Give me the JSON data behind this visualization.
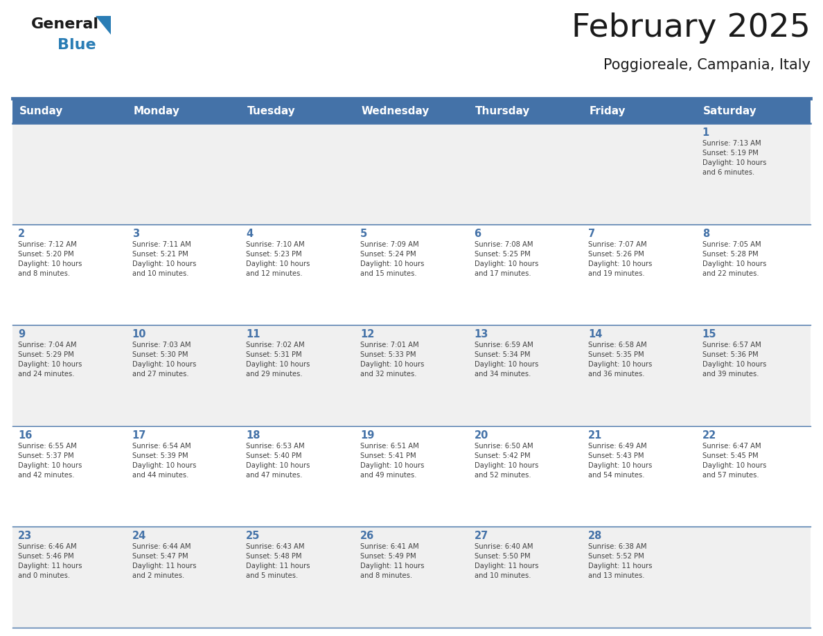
{
  "title": "February 2025",
  "subtitle": "Poggioreale, Campania, Italy",
  "days_of_week": [
    "Sunday",
    "Monday",
    "Tuesday",
    "Wednesday",
    "Thursday",
    "Friday",
    "Saturday"
  ],
  "header_bg": "#4472A8",
  "header_fg": "#FFFFFF",
  "row_bg_odd": "#F0F0F0",
  "row_bg_even": "#FFFFFF",
  "separator_color": "#4472A8",
  "day_color": "#4472A8",
  "text_color": "#404040",
  "title_color": "#1A1A1A",
  "logo_general_color": "#1A1A1A",
  "logo_blue_color": "#2A7DB5",
  "calendar": [
    [
      {
        "day": null,
        "info": null
      },
      {
        "day": null,
        "info": null
      },
      {
        "day": null,
        "info": null
      },
      {
        "day": null,
        "info": null
      },
      {
        "day": null,
        "info": null
      },
      {
        "day": null,
        "info": null
      },
      {
        "day": 1,
        "info": "Sunrise: 7:13 AM\nSunset: 5:19 PM\nDaylight: 10 hours\nand 6 minutes."
      }
    ],
    [
      {
        "day": 2,
        "info": "Sunrise: 7:12 AM\nSunset: 5:20 PM\nDaylight: 10 hours\nand 8 minutes."
      },
      {
        "day": 3,
        "info": "Sunrise: 7:11 AM\nSunset: 5:21 PM\nDaylight: 10 hours\nand 10 minutes."
      },
      {
        "day": 4,
        "info": "Sunrise: 7:10 AM\nSunset: 5:23 PM\nDaylight: 10 hours\nand 12 minutes."
      },
      {
        "day": 5,
        "info": "Sunrise: 7:09 AM\nSunset: 5:24 PM\nDaylight: 10 hours\nand 15 minutes."
      },
      {
        "day": 6,
        "info": "Sunrise: 7:08 AM\nSunset: 5:25 PM\nDaylight: 10 hours\nand 17 minutes."
      },
      {
        "day": 7,
        "info": "Sunrise: 7:07 AM\nSunset: 5:26 PM\nDaylight: 10 hours\nand 19 minutes."
      },
      {
        "day": 8,
        "info": "Sunrise: 7:05 AM\nSunset: 5:28 PM\nDaylight: 10 hours\nand 22 minutes."
      }
    ],
    [
      {
        "day": 9,
        "info": "Sunrise: 7:04 AM\nSunset: 5:29 PM\nDaylight: 10 hours\nand 24 minutes."
      },
      {
        "day": 10,
        "info": "Sunrise: 7:03 AM\nSunset: 5:30 PM\nDaylight: 10 hours\nand 27 minutes."
      },
      {
        "day": 11,
        "info": "Sunrise: 7:02 AM\nSunset: 5:31 PM\nDaylight: 10 hours\nand 29 minutes."
      },
      {
        "day": 12,
        "info": "Sunrise: 7:01 AM\nSunset: 5:33 PM\nDaylight: 10 hours\nand 32 minutes."
      },
      {
        "day": 13,
        "info": "Sunrise: 6:59 AM\nSunset: 5:34 PM\nDaylight: 10 hours\nand 34 minutes."
      },
      {
        "day": 14,
        "info": "Sunrise: 6:58 AM\nSunset: 5:35 PM\nDaylight: 10 hours\nand 36 minutes."
      },
      {
        "day": 15,
        "info": "Sunrise: 6:57 AM\nSunset: 5:36 PM\nDaylight: 10 hours\nand 39 minutes."
      }
    ],
    [
      {
        "day": 16,
        "info": "Sunrise: 6:55 AM\nSunset: 5:37 PM\nDaylight: 10 hours\nand 42 minutes."
      },
      {
        "day": 17,
        "info": "Sunrise: 6:54 AM\nSunset: 5:39 PM\nDaylight: 10 hours\nand 44 minutes."
      },
      {
        "day": 18,
        "info": "Sunrise: 6:53 AM\nSunset: 5:40 PM\nDaylight: 10 hours\nand 47 minutes."
      },
      {
        "day": 19,
        "info": "Sunrise: 6:51 AM\nSunset: 5:41 PM\nDaylight: 10 hours\nand 49 minutes."
      },
      {
        "day": 20,
        "info": "Sunrise: 6:50 AM\nSunset: 5:42 PM\nDaylight: 10 hours\nand 52 minutes."
      },
      {
        "day": 21,
        "info": "Sunrise: 6:49 AM\nSunset: 5:43 PM\nDaylight: 10 hours\nand 54 minutes."
      },
      {
        "day": 22,
        "info": "Sunrise: 6:47 AM\nSunset: 5:45 PM\nDaylight: 10 hours\nand 57 minutes."
      }
    ],
    [
      {
        "day": 23,
        "info": "Sunrise: 6:46 AM\nSunset: 5:46 PM\nDaylight: 11 hours\nand 0 minutes."
      },
      {
        "day": 24,
        "info": "Sunrise: 6:44 AM\nSunset: 5:47 PM\nDaylight: 11 hours\nand 2 minutes."
      },
      {
        "day": 25,
        "info": "Sunrise: 6:43 AM\nSunset: 5:48 PM\nDaylight: 11 hours\nand 5 minutes."
      },
      {
        "day": 26,
        "info": "Sunrise: 6:41 AM\nSunset: 5:49 PM\nDaylight: 11 hours\nand 8 minutes."
      },
      {
        "day": 27,
        "info": "Sunrise: 6:40 AM\nSunset: 5:50 PM\nDaylight: 11 hours\nand 10 minutes."
      },
      {
        "day": 28,
        "info": "Sunrise: 6:38 AM\nSunset: 5:52 PM\nDaylight: 11 hours\nand 13 minutes."
      },
      {
        "day": null,
        "info": null
      }
    ]
  ]
}
